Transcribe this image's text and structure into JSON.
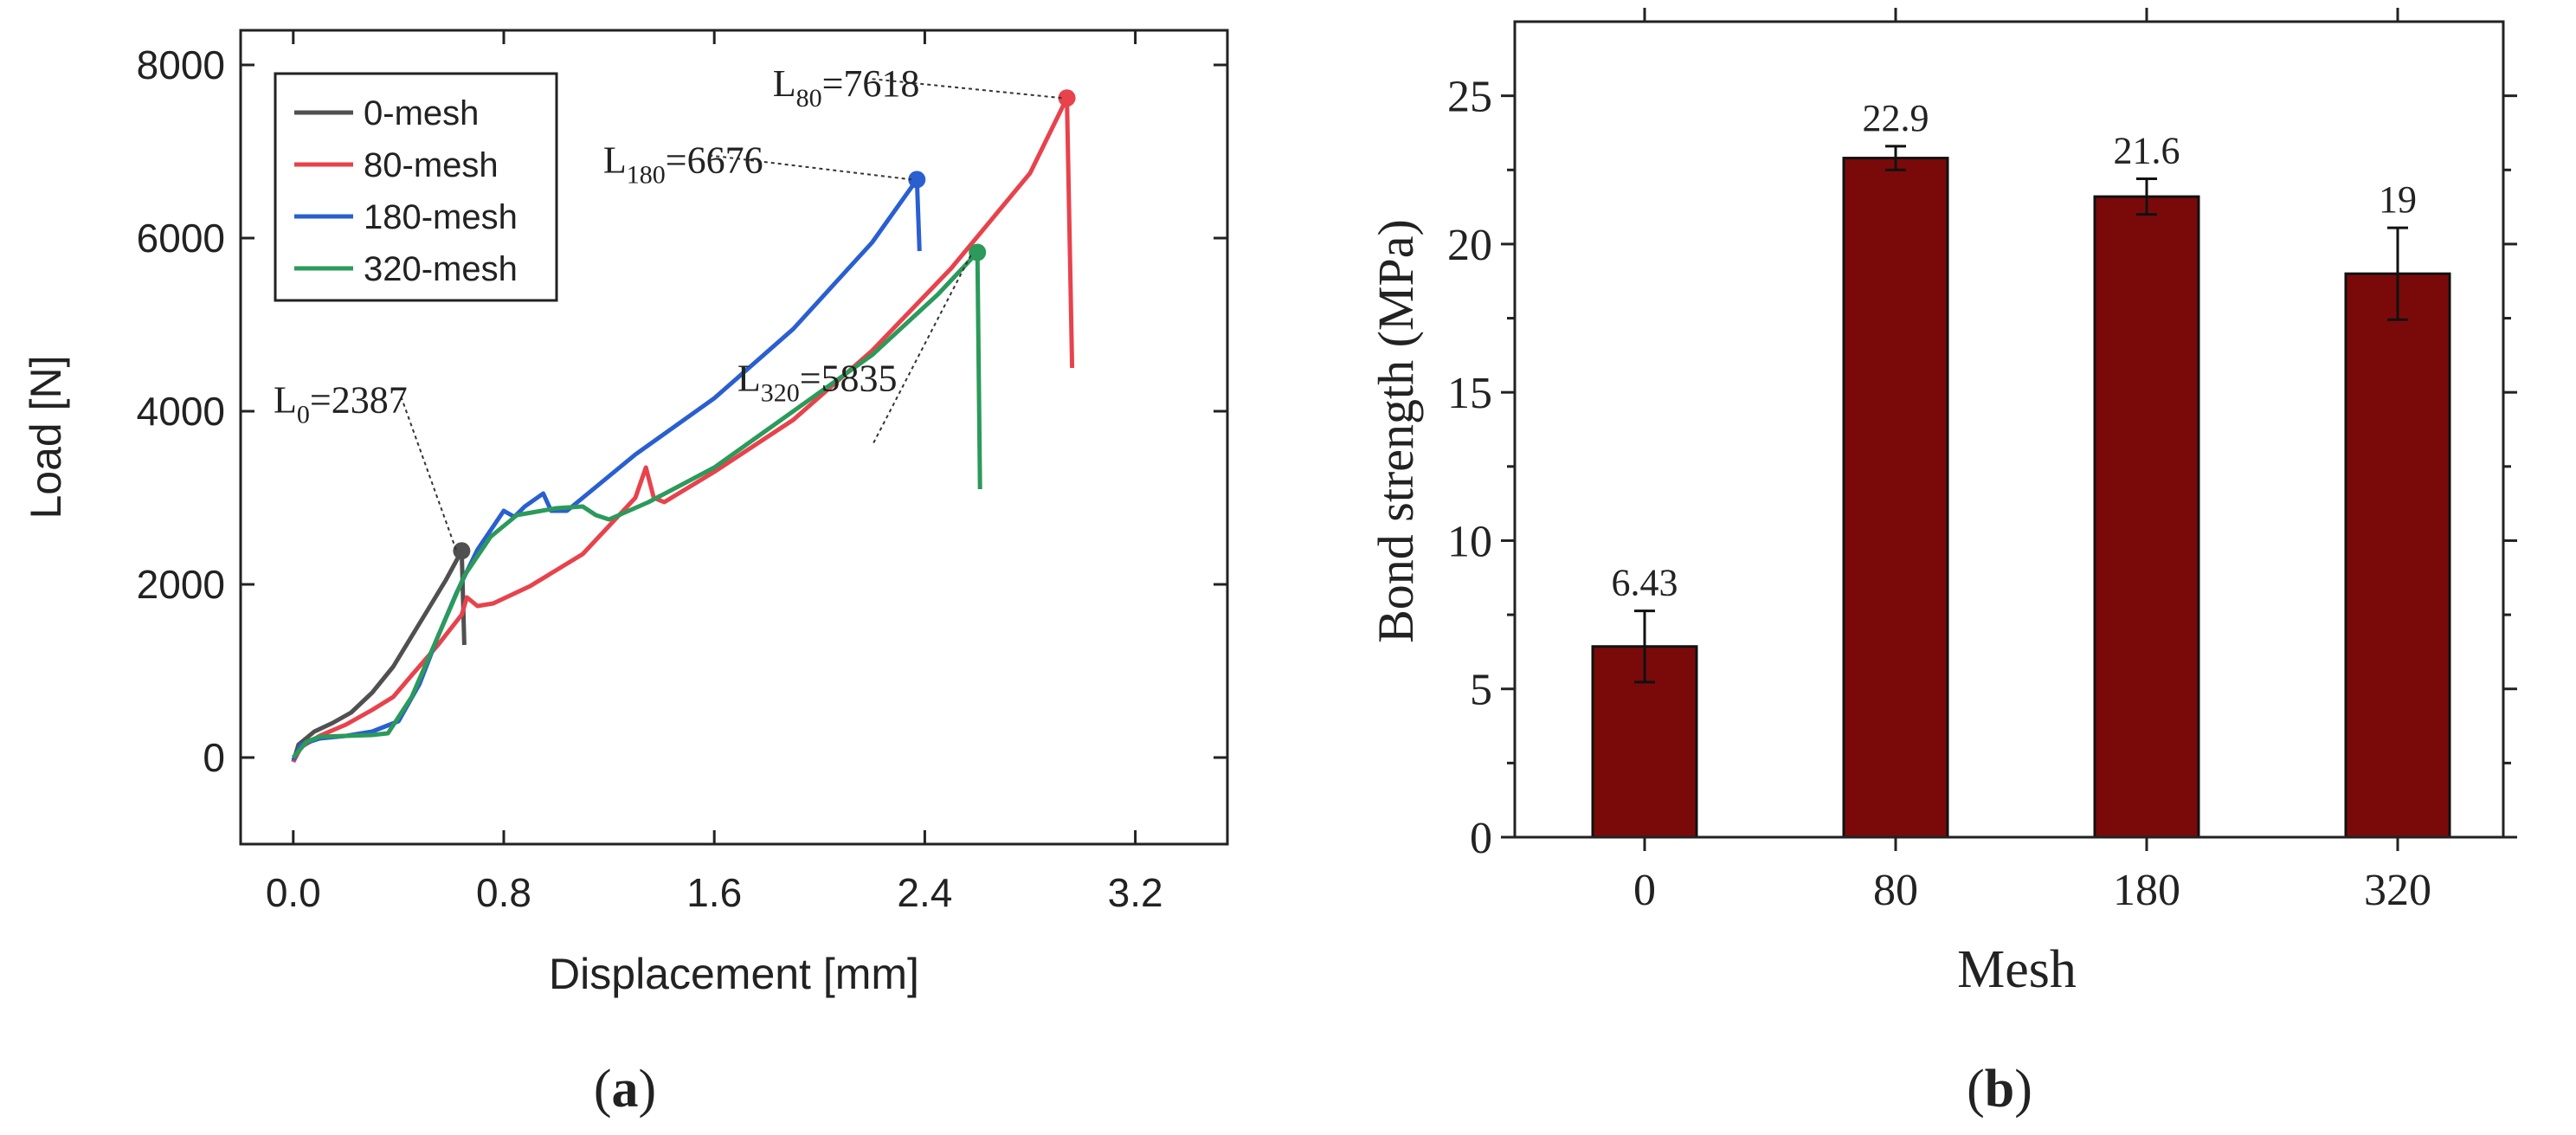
{
  "panels": {
    "a_label": "a",
    "b_label": "b"
  },
  "chart_data": [
    {
      "type": "line",
      "xlabel": "Displacement [mm]",
      "ylabel": "Load [N]",
      "xlim": [
        -0.2,
        3.55
      ],
      "ylim": [
        -1000,
        8400
      ],
      "xticks": [
        "0.0",
        "0.8",
        "1.6",
        "2.4",
        "3.2"
      ],
      "xtick_values": [
        0.0,
        0.8,
        1.6,
        2.4,
        3.2
      ],
      "yticks": [
        "0",
        "2000",
        "4000",
        "6000",
        "8000"
      ],
      "ytick_values": [
        0,
        2000,
        4000,
        6000,
        8000
      ],
      "legend_position": "top-left",
      "series": [
        {
          "name": "0-mesh",
          "color": "#505050",
          "points": [
            [
              0,
              -50
            ],
            [
              0.02,
              150
            ],
            [
              0.08,
              300
            ],
            [
              0.15,
              400
            ],
            [
              0.22,
              520
            ],
            [
              0.3,
              750
            ],
            [
              0.38,
              1050
            ],
            [
              0.45,
              1400
            ],
            [
              0.52,
              1750
            ],
            [
              0.58,
              2050
            ],
            [
              0.64,
              2387
            ],
            [
              0.65,
              1300
            ]
          ]
        },
        {
          "name": "80-mesh",
          "color": "#e8424c",
          "points": [
            [
              0,
              -50
            ],
            [
              0.03,
              120
            ],
            [
              0.1,
              250
            ],
            [
              0.2,
              380
            ],
            [
              0.3,
              550
            ],
            [
              0.38,
              700
            ],
            [
              0.45,
              950
            ],
            [
              0.55,
              1300
            ],
            [
              0.64,
              1650
            ],
            [
              0.66,
              1850
            ],
            [
              0.7,
              1750
            ],
            [
              0.76,
              1780
            ],
            [
              0.9,
              1980
            ],
            [
              1.1,
              2350
            ],
            [
              1.3,
              3000
            ],
            [
              1.34,
              3350
            ],
            [
              1.37,
              3000
            ],
            [
              1.41,
              2950
            ],
            [
              1.6,
              3300
            ],
            [
              1.9,
              3900
            ],
            [
              2.2,
              4700
            ],
            [
              2.5,
              5650
            ],
            [
              2.8,
              6750
            ],
            [
              2.94,
              7618
            ],
            [
              2.96,
              4500
            ]
          ]
        },
        {
          "name": "180-mesh",
          "color": "#2a5fd0",
          "points": [
            [
              0,
              -30
            ],
            [
              0.03,
              150
            ],
            [
              0.1,
              220
            ],
            [
              0.2,
              250
            ],
            [
              0.3,
              300
            ],
            [
              0.4,
              420
            ],
            [
              0.48,
              850
            ],
            [
              0.55,
              1400
            ],
            [
              0.62,
              1900
            ],
            [
              0.7,
              2400
            ],
            [
              0.8,
              2850
            ],
            [
              0.84,
              2780
            ],
            [
              0.88,
              2900
            ],
            [
              0.95,
              3050
            ],
            [
              0.98,
              2850
            ],
            [
              1.04,
              2850
            ],
            [
              1.3,
              3500
            ],
            [
              1.6,
              4150
            ],
            [
              1.9,
              4950
            ],
            [
              2.2,
              5950
            ],
            [
              2.37,
              6676
            ],
            [
              2.38,
              5850
            ]
          ]
        },
        {
          "name": "320-mesh",
          "color": "#2b9a5a",
          "points": [
            [
              0,
              0
            ],
            [
              0.05,
              180
            ],
            [
              0.1,
              240
            ],
            [
              0.2,
              250
            ],
            [
              0.3,
              260
            ],
            [
              0.36,
              280
            ],
            [
              0.45,
              700
            ],
            [
              0.55,
              1400
            ],
            [
              0.65,
              2100
            ],
            [
              0.75,
              2550
            ],
            [
              0.85,
              2800
            ],
            [
              1.0,
              2880
            ],
            [
              1.1,
              2900
            ],
            [
              1.15,
              2800
            ],
            [
              1.2,
              2750
            ],
            [
              1.35,
              2950
            ],
            [
              1.6,
              3350
            ],
            [
              1.9,
              4000
            ],
            [
              2.2,
              4650
            ],
            [
              2.45,
              5350
            ],
            [
              2.6,
              5835
            ],
            [
              2.61,
              3100
            ]
          ]
        }
      ],
      "annotations": [
        {
          "main": "L",
          "sub": "0",
          "value": "=2387",
          "series": "0-mesh",
          "x": 0.64,
          "y": 2387
        },
        {
          "main": "L",
          "sub": "80",
          "value": "=7618",
          "series": "80-mesh",
          "x": 2.94,
          "y": 7618
        },
        {
          "main": "L",
          "sub": "180",
          "value": "=6676",
          "series": "180-mesh",
          "x": 2.37,
          "y": 6676
        },
        {
          "main": "L",
          "sub": "320",
          "value": "=5835",
          "series": "320-mesh",
          "x": 2.6,
          "y": 5835
        }
      ]
    },
    {
      "type": "bar",
      "xlabel": "Mesh",
      "ylabel": "Bond strength (MPa)",
      "ylim": [
        0,
        27.5
      ],
      "yticks": [
        "0",
        "5",
        "10",
        "15",
        "20",
        "25"
      ],
      "ytick_values": [
        0,
        5,
        10,
        15,
        20,
        25
      ],
      "categories": [
        "0",
        "80",
        "180",
        "320"
      ],
      "values": [
        6.43,
        22.9,
        21.6,
        19
      ],
      "value_labels": [
        "6.43",
        "22.9",
        "21.6",
        "19"
      ],
      "error": [
        1.2,
        0.4,
        0.6,
        1.55
      ],
      "bar_color": "#7a0a0a"
    }
  ]
}
